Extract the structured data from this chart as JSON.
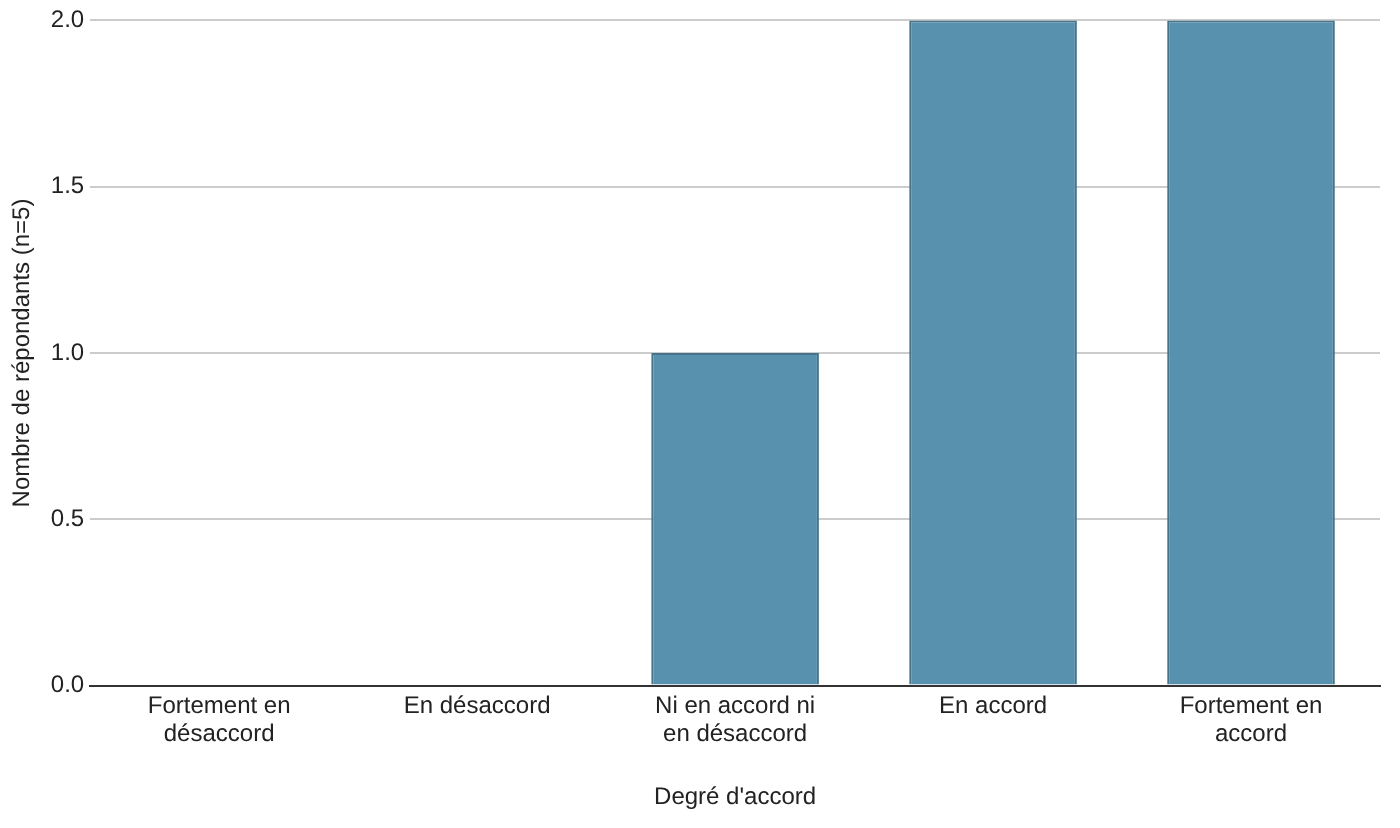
{
  "chart_data": {
    "type": "bar",
    "xlabel": "Degré d'accord",
    "ylabel": "Nombre de répondants (n=5)",
    "categories": [
      "Fortement en désaccord",
      "En désaccord",
      "Ni en accord ni en désaccord",
      "En accord",
      "Fortement en accord"
    ],
    "values": [
      0,
      0,
      1,
      2,
      2
    ],
    "color": "#5891ad",
    "ylim": [
      0,
      2
    ],
    "yticks": [
      {
        "value": 0,
        "label": "0.0"
      },
      {
        "value": 0.5,
        "label": "0.5"
      },
      {
        "value": 1,
        "label": "1.0"
      },
      {
        "value": 1.5,
        "label": "1.5"
      },
      {
        "value": 2,
        "label": "2.0"
      }
    ],
    "grid": "y"
  }
}
